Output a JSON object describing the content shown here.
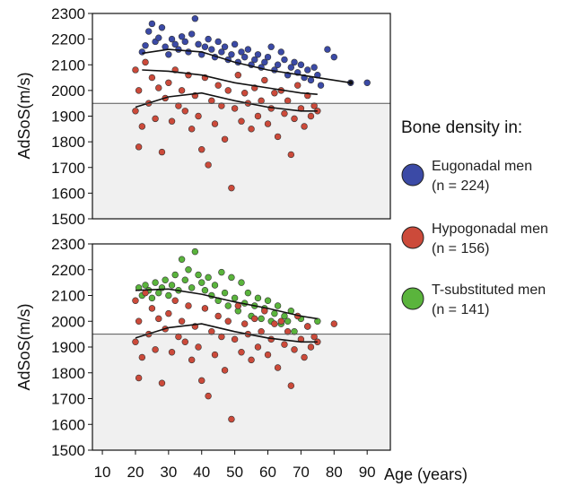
{
  "chart_data": [
    {
      "id": "top",
      "type": "scatter",
      "ylabel": "AdSoS(m/s)",
      "ylim": [
        1500,
        2300
      ],
      "yticks": [
        1500,
        1600,
        1700,
        1800,
        1900,
        2000,
        2100,
        2200,
        2300
      ],
      "xlim": [
        7,
        97
      ],
      "threshold": 1950,
      "series": [
        {
          "name": "Eugonadal men",
          "color": "#3b4aa6",
          "points": [
            [
              22,
              2150
            ],
            [
              23,
              2175
            ],
            [
              24,
              2230
            ],
            [
              25,
              2260
            ],
            [
              26,
              2190
            ],
            [
              27,
              2205
            ],
            [
              28,
              2245
            ],
            [
              29,
              2170
            ],
            [
              30,
              2140
            ],
            [
              31,
              2200
            ],
            [
              32,
              2180
            ],
            [
              33,
              2160
            ],
            [
              34,
              2210
            ],
            [
              35,
              2190
            ],
            [
              36,
              2150
            ],
            [
              37,
              2220
            ],
            [
              38,
              2280
            ],
            [
              39,
              2180
            ],
            [
              40,
              2140
            ],
            [
              41,
              2170
            ],
            [
              42,
              2200
            ],
            [
              43,
              2160
            ],
            [
              44,
              2130
            ],
            [
              45,
              2190
            ],
            [
              46,
              2150
            ],
            [
              47,
              2170
            ],
            [
              48,
              2120
            ],
            [
              49,
              2140
            ],
            [
              50,
              2180
            ],
            [
              51,
              2110
            ],
            [
              52,
              2150
            ],
            [
              53,
              2130
            ],
            [
              54,
              2160
            ],
            [
              55,
              2100
            ],
            [
              56,
              2120
            ],
            [
              57,
              2140
            ],
            [
              58,
              2090
            ],
            [
              59,
              2110
            ],
            [
              60,
              2130
            ],
            [
              61,
              2170
            ],
            [
              62,
              2080
            ],
            [
              63,
              2100
            ],
            [
              64,
              2150
            ],
            [
              65,
              2120
            ],
            [
              66,
              2060
            ],
            [
              67,
              2090
            ],
            [
              68,
              2110
            ],
            [
              69,
              2070
            ],
            [
              70,
              2100
            ],
            [
              71,
              2050
            ],
            [
              72,
              2080
            ],
            [
              73,
              2040
            ],
            [
              74,
              2090
            ],
            [
              75,
              2060
            ],
            [
              76,
              2020
            ],
            [
              78,
              2160
            ],
            [
              80,
              2130
            ],
            [
              85,
              2030
            ],
            [
              90,
              2030
            ]
          ]
        },
        {
          "name": "Hypogonadal men",
          "color": "#cc4a3a",
          "points": [
            [
              20,
              2080
            ],
            [
              20,
              1920
            ],
            [
              21,
              1780
            ],
            [
              21,
              2000
            ],
            [
              22,
              1860
            ],
            [
              23,
              2110
            ],
            [
              24,
              1950
            ],
            [
              25,
              2050
            ],
            [
              26,
              1890
            ],
            [
              27,
              2010
            ],
            [
              28,
              1760
            ],
            [
              29,
              1970
            ],
            [
              30,
              2030
            ],
            [
              31,
              1880
            ],
            [
              32,
              2080
            ],
            [
              33,
              1940
            ],
            [
              34,
              2000
            ],
            [
              35,
              1920
            ],
            [
              36,
              2060
            ],
            [
              37,
              1850
            ],
            [
              38,
              1980
            ],
            [
              39,
              1900
            ],
            [
              40,
              1770
            ],
            [
              41,
              2050
            ],
            [
              42,
              1710
            ],
            [
              43,
              1960
            ],
            [
              44,
              1870
            ],
            [
              45,
              2020
            ],
            [
              46,
              1940
            ],
            [
              47,
              1810
            ],
            [
              48,
              2000
            ],
            [
              49,
              1620
            ],
            [
              50,
              1930
            ],
            [
              51,
              2060
            ],
            [
              52,
              1880
            ],
            [
              53,
              1990
            ],
            [
              54,
              1950
            ],
            [
              55,
              1850
            ],
            [
              56,
              2010
            ],
            [
              57,
              1900
            ],
            [
              58,
              1960
            ],
            [
              59,
              2040
            ],
            [
              60,
              1870
            ],
            [
              61,
              1930
            ],
            [
              62,
              1990
            ],
            [
              63,
              1820
            ],
            [
              64,
              2000
            ],
            [
              65,
              1910
            ],
            [
              66,
              1960
            ],
            [
              67,
              1750
            ],
            [
              68,
              1890
            ],
            [
              69,
              2020
            ],
            [
              70,
              1930
            ],
            [
              71,
              1860
            ],
            [
              72,
              1980
            ],
            [
              73,
              1900
            ],
            [
              74,
              1940
            ],
            [
              75,
              1920
            ]
          ]
        }
      ],
      "trend_lines": [
        {
          "series": "Eugonadal men",
          "color": "#111111",
          "points": [
            [
              22,
              2145
            ],
            [
              30,
              2160
            ],
            [
              40,
              2150
            ],
            [
              50,
              2110
            ],
            [
              60,
              2080
            ],
            [
              70,
              2060
            ],
            [
              80,
              2040
            ],
            [
              85,
              2030
            ]
          ]
        },
        {
          "series": "Hypogonadal men",
          "color": "#111111",
          "points": [
            [
              22,
              2080
            ],
            [
              30,
              2075
            ],
            [
              40,
              2060
            ],
            [
              50,
              2030
            ],
            [
              60,
              2010
            ],
            [
              70,
              1990
            ],
            [
              75,
              1985
            ]
          ]
        },
        {
          "series": "Hypogonadal men (lower)",
          "color": "#111111",
          "points": [
            [
              20,
              1935
            ],
            [
              30,
              1975
            ],
            [
              40,
              1990
            ],
            [
              50,
              1960
            ],
            [
              60,
              1935
            ],
            [
              70,
              1920
            ],
            [
              75,
              1920
            ]
          ]
        }
      ]
    },
    {
      "id": "bottom",
      "type": "scatter",
      "xlabel": "Age (years)",
      "ylabel": "AdSoS(m/s)",
      "ylim": [
        1500,
        2300
      ],
      "yticks": [
        1500,
        1600,
        1700,
        1800,
        1900,
        2000,
        2100,
        2200,
        2300
      ],
      "xlim": [
        7,
        97
      ],
      "xticks": [
        10,
        20,
        30,
        40,
        50,
        60,
        70,
        80,
        90
      ],
      "threshold": 1950,
      "series": [
        {
          "name": "T-substituted men",
          "color": "#5ab43c",
          "points": [
            [
              21,
              2130
            ],
            [
              22,
              2100
            ],
            [
              23,
              2140
            ],
            [
              24,
              2120
            ],
            [
              25,
              2090
            ],
            [
              26,
              2150
            ],
            [
              27,
              2110
            ],
            [
              28,
              2130
            ],
            [
              29,
              2160
            ],
            [
              30,
              2100
            ],
            [
              31,
              2140
            ],
            [
              32,
              2180
            ],
            [
              33,
              2120
            ],
            [
              34,
              2240
            ],
            [
              35,
              2160
            ],
            [
              36,
              2200
            ],
            [
              37,
              2130
            ],
            [
              38,
              2270
            ],
            [
              39,
              2180
            ],
            [
              40,
              2150
            ],
            [
              41,
              2120
            ],
            [
              42,
              2170
            ],
            [
              43,
              2100
            ],
            [
              44,
              2140
            ],
            [
              45,
              2080
            ],
            [
              46,
              2190
            ],
            [
              47,
              2110
            ],
            [
              48,
              2060
            ],
            [
              49,
              2170
            ],
            [
              50,
              2090
            ],
            [
              51,
              2040
            ],
            [
              52,
              2150
            ],
            [
              53,
              2070
            ],
            [
              54,
              2110
            ],
            [
              55,
              2020
            ],
            [
              56,
              2060
            ],
            [
              57,
              2090
            ],
            [
              58,
              2010
            ],
            [
              59,
              2050
            ],
            [
              60,
              2080
            ],
            [
              61,
              2000
            ],
            [
              62,
              2030
            ],
            [
              63,
              2060
            ],
            [
              64,
              1990
            ],
            [
              65,
              2020
            ],
            [
              66,
              2000
            ],
            [
              67,
              2040
            ],
            [
              68,
              1960
            ],
            [
              70,
              2010
            ],
            [
              72,
              1980
            ],
            [
              75,
              2000
            ]
          ]
        },
        {
          "name": "Hypogonadal men",
          "color": "#cc4a3a",
          "points": [
            [
              20,
              2080
            ],
            [
              20,
              1920
            ],
            [
              21,
              1780
            ],
            [
              21,
              2000
            ],
            [
              22,
              1860
            ],
            [
              23,
              2110
            ],
            [
              24,
              1950
            ],
            [
              25,
              2050
            ],
            [
              26,
              1890
            ],
            [
              27,
              2010
            ],
            [
              28,
              1760
            ],
            [
              29,
              1970
            ],
            [
              30,
              2030
            ],
            [
              31,
              1880
            ],
            [
              32,
              2080
            ],
            [
              33,
              1940
            ],
            [
              34,
              2000
            ],
            [
              35,
              1920
            ],
            [
              36,
              2060
            ],
            [
              37,
              1850
            ],
            [
              38,
              1980
            ],
            [
              39,
              1900
            ],
            [
              40,
              1770
            ],
            [
              41,
              2050
            ],
            [
              42,
              1710
            ],
            [
              43,
              1960
            ],
            [
              44,
              1870
            ],
            [
              45,
              2020
            ],
            [
              46,
              1940
            ],
            [
              47,
              1810
            ],
            [
              48,
              2000
            ],
            [
              49,
              1620
            ],
            [
              50,
              1930
            ],
            [
              51,
              2060
            ],
            [
              52,
              1880
            ],
            [
              53,
              1990
            ],
            [
              54,
              1950
            ],
            [
              55,
              1850
            ],
            [
              56,
              2010
            ],
            [
              57,
              1900
            ],
            [
              58,
              1960
            ],
            [
              59,
              2040
            ],
            [
              60,
              1870
            ],
            [
              61,
              1930
            ],
            [
              62,
              1990
            ],
            [
              63,
              1820
            ],
            [
              64,
              2000
            ],
            [
              65,
              1910
            ],
            [
              66,
              1960
            ],
            [
              67,
              1750
            ],
            [
              68,
              1890
            ],
            [
              69,
              2020
            ],
            [
              70,
              1930
            ],
            [
              71,
              1860
            ],
            [
              72,
              1980
            ],
            [
              73,
              1900
            ],
            [
              74,
              1940
            ],
            [
              75,
              1920
            ],
            [
              80,
              1990
            ]
          ]
        }
      ],
      "trend_lines": [
        {
          "series": "T-substituted men",
          "color": "#111111",
          "points": [
            [
              20,
              2120
            ],
            [
              30,
              2125
            ],
            [
              40,
              2105
            ],
            [
              50,
              2075
            ],
            [
              60,
              2050
            ],
            [
              70,
              2020
            ],
            [
              75,
              2010
            ]
          ]
        },
        {
          "series": "Hypogonadal men",
          "color": "#111111",
          "points": [
            [
              20,
              1935
            ],
            [
              30,
              1975
            ],
            [
              40,
              1990
            ],
            [
              50,
              1960
            ],
            [
              60,
              1935
            ],
            [
              70,
              1920
            ],
            [
              75,
              1920
            ]
          ]
        }
      ]
    }
  ],
  "legend": {
    "title": "Bone density in:",
    "items": [
      {
        "line1": "Eugonadal men",
        "line2": "(n = 224)",
        "color": "#3b4aa6"
      },
      {
        "line1": "Hypogonadal men",
        "line2": "(n = 156)",
        "color": "#cc4a3a"
      },
      {
        "line1": "T-substituted men",
        "line2": "(n = 141)",
        "color": "#5ab43c"
      }
    ]
  },
  "colors": {
    "shade": "#f0f0f0",
    "frame": "#111111",
    "threshold": "#555555"
  }
}
